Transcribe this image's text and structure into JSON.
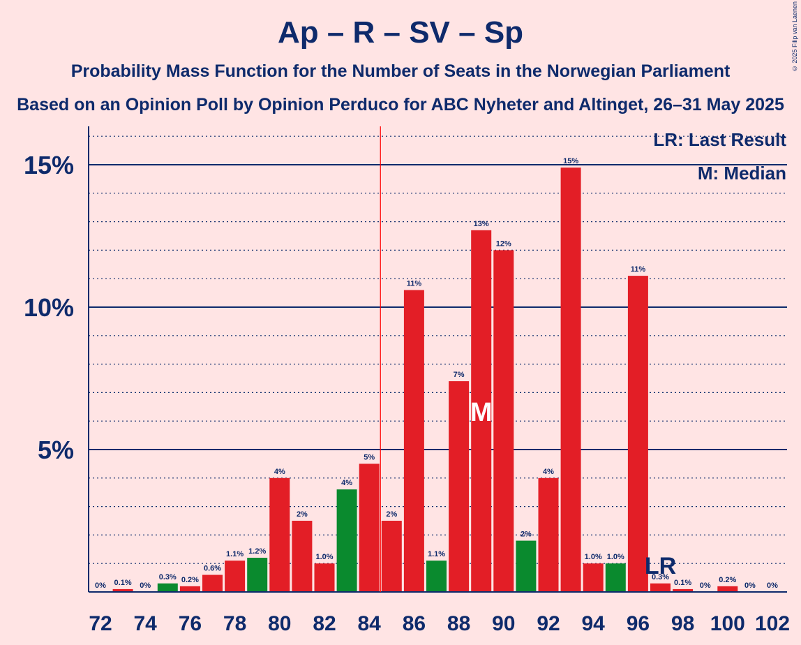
{
  "title": "Ap – R – SV – Sp",
  "subtitle": "Probability Mass Function for the Number of Seats in the Norwegian Parliament",
  "subtitle2": "Based on an Opinion Poll by Opinion Perduco for ABC Nyheter and Altinget, 26–31 May 2025",
  "copyright": "© 2025 Filip van Laenen",
  "legend": {
    "lr": "LR: Last Result",
    "m": "M: Median"
  },
  "colors": {
    "red": "#E31E26",
    "green": "#0A8A2E",
    "navy": "#0E2A6B",
    "background": "#FFE4E4",
    "majority_line": "#FF0000"
  },
  "chart_data": {
    "type": "bar",
    "x": [
      72,
      73,
      74,
      75,
      76,
      77,
      78,
      79,
      80,
      81,
      82,
      83,
      84,
      85,
      86,
      87,
      88,
      89,
      90,
      91,
      92,
      93,
      94,
      95,
      96,
      97,
      98,
      99,
      100,
      101,
      102
    ],
    "values": [
      0.0,
      0.1,
      0.0,
      0.3,
      0.2,
      0.6,
      1.1,
      1.2,
      4.0,
      2.5,
      1.0,
      3.6,
      4.5,
      2.5,
      10.6,
      1.1,
      7.4,
      12.7,
      12.0,
      1.8,
      4.0,
      14.9,
      1.0,
      1.0,
      11.1,
      0.3,
      0.1,
      0.0,
      0.2,
      0.0,
      0.0
    ],
    "labels": [
      "0%",
      "0.1%",
      "0%",
      "0.3%",
      "0.2%",
      "0.6%",
      "1.1%",
      "1.2%",
      "4%",
      "2%",
      "1.0%",
      "4%",
      "5%",
      "2%",
      "11%",
      "1.1%",
      "7%",
      "13%",
      "12%",
      "2%",
      "4%",
      "15%",
      "1.0%",
      "1.0%",
      "11%",
      "0.3%",
      "0.1%",
      "0%",
      "0.2%",
      "0%",
      "0%"
    ],
    "bar_colors": [
      "red",
      "red",
      "red",
      "green",
      "red",
      "red",
      "red",
      "green",
      "red",
      "red",
      "red",
      "green",
      "red",
      "red",
      "red",
      "green",
      "red",
      "red",
      "red",
      "green",
      "red",
      "red",
      "red",
      "green",
      "red",
      "red",
      "red",
      "red",
      "red",
      "red",
      "red"
    ],
    "x_tick_labels": [
      "72",
      "74",
      "76",
      "78",
      "80",
      "82",
      "84",
      "86",
      "88",
      "90",
      "92",
      "94",
      "96",
      "98",
      "100",
      "102"
    ],
    "y_tick_labels": [
      "5%",
      "10%",
      "15%"
    ],
    "ylim": [
      0,
      16.3
    ],
    "y_ticks": [
      5,
      10,
      15
    ],
    "y_minor_step": 1,
    "majority_seat": 85,
    "median_seat": 89,
    "median_label": "M",
    "last_result_seat": 97,
    "last_result_label": "LR"
  }
}
